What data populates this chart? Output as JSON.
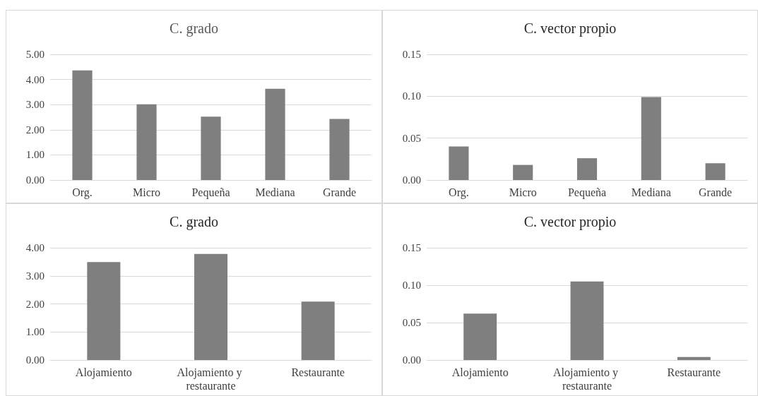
{
  "chart_data": [
    {
      "type": "bar",
      "title": "C. grado",
      "categories": [
        "Org.",
        "Micro",
        "Pequeña",
        "Mediana",
        "Grande"
      ],
      "values": [
        4.36,
        3.01,
        2.52,
        3.63,
        2.43
      ],
      "color": "#7f7f7f",
      "ylim": [
        0,
        5
      ],
      "yticks": [
        {
          "value": 0,
          "label": "0.00"
        },
        {
          "value": 1,
          "label": "1.00"
        },
        {
          "value": 2,
          "label": "2.00"
        },
        {
          "value": 3,
          "label": "3.00"
        },
        {
          "value": 4,
          "label": "4.00"
        },
        {
          "value": 5,
          "label": "5.00"
        }
      ],
      "grid": "y"
    },
    {
      "type": "bar",
      "title": "C. vector propio",
      "categories": [
        "Org.",
        "Micro",
        "Pequeña",
        "Mediana",
        "Grande"
      ],
      "values": [
        0.04,
        0.018,
        0.026,
        0.099,
        0.02
      ],
      "color": "#7f7f7f",
      "ylim": [
        0,
        0.15
      ],
      "yticks": [
        {
          "value": 0,
          "label": "0.00"
        },
        {
          "value": 0.05,
          "label": "0.05"
        },
        {
          "value": 0.1,
          "label": "0.10"
        },
        {
          "value": 0.15,
          "label": "0.15"
        }
      ],
      "grid": "y"
    },
    {
      "type": "bar",
      "title": "C. grado",
      "categories": [
        "Alojamiento",
        "Alojamiento y restaurante",
        "Restaurante"
      ],
      "values": [
        3.49,
        3.78,
        2.08
      ],
      "color": "#7f7f7f",
      "ylim": [
        0,
        4
      ],
      "yticks": [
        {
          "value": 0,
          "label": "0.00"
        },
        {
          "value": 1,
          "label": "1.00"
        },
        {
          "value": 2,
          "label": "2.00"
        },
        {
          "value": 3,
          "label": "3.00"
        },
        {
          "value": 4,
          "label": "4.00"
        }
      ],
      "grid": "y"
    },
    {
      "type": "bar",
      "title": "C. vector propio",
      "categories": [
        "Alojamiento",
        "Alojamiento y restaurante",
        "Restaurante"
      ],
      "values": [
        0.062,
        0.105,
        0.004
      ],
      "color": "#7f7f7f",
      "ylim": [
        0,
        0.15
      ],
      "yticks": [
        {
          "value": 0,
          "label": "0.00"
        },
        {
          "value": 0.05,
          "label": "0.05"
        },
        {
          "value": 0.1,
          "label": "0.10"
        },
        {
          "value": 0.15,
          "label": "0.15"
        }
      ],
      "grid": "y"
    }
  ]
}
